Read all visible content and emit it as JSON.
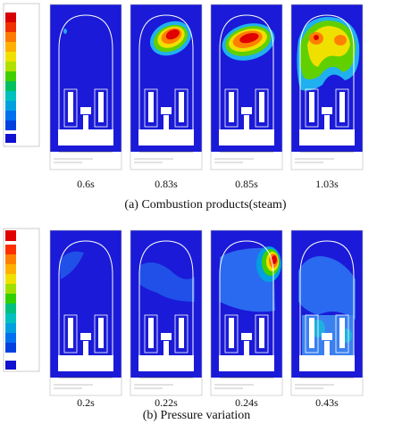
{
  "panel_a": {
    "times": [
      "0.6s",
      "0.83s",
      "0.85s",
      "1.03s"
    ],
    "caption": "(a)  Combustion products(steam)"
  },
  "panel_b": {
    "times": [
      "0.2s",
      "0.22s",
      "0.24s",
      "0.43s"
    ],
    "caption": "(b)  Pressure variation"
  }
}
